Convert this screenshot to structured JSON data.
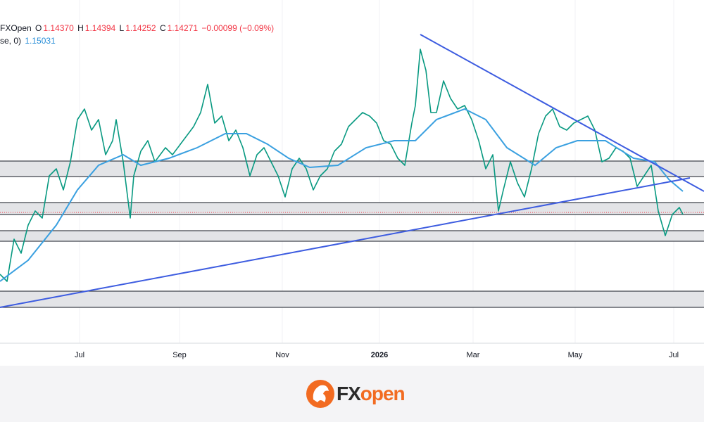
{
  "legend": {
    "symbol": "FXOpen",
    "open_key": "O",
    "open": "1.14370",
    "high_key": "H",
    "high": "1.14394",
    "low_key": "L",
    "low": "1.14252",
    "close_key": "C",
    "close": "1.14271",
    "change": "−0.00099 (−0.09%)",
    "ma_label": "se, 0)",
    "ma_value": "1.15031"
  },
  "x_axis": {
    "labels": [
      "Jul",
      "Sep",
      "Nov",
      "2026",
      "Mar",
      "May",
      "Jul"
    ]
  },
  "logo": {
    "prefix": "FX",
    "suffix": "open"
  }
}
